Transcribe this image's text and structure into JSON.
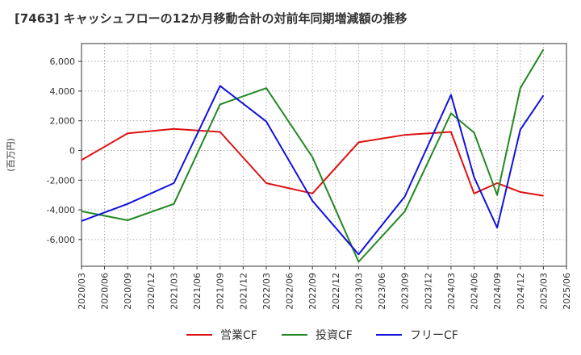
{
  "title": "[7463]  キャッシュフローの12か月移動合計の対前年同期増減額の推移",
  "chart_data": {
    "type": "line",
    "title": "[7463]  キャッシュフローの12か月移動合計の対前年同期増減額の推移",
    "ylabel": "(百万円)",
    "xlabel": "",
    "ylim": [
      -7800,
      7200
    ],
    "yticks": [
      -6000,
      -4000,
      -2000,
      0,
      2000,
      4000,
      6000
    ],
    "ytick_labels": [
      "-6,000",
      "-4,000",
      "-2,000",
      "0",
      "2,000",
      "4,000",
      "6,000"
    ],
    "categories": [
      "2020/03",
      "2020/06",
      "2020/09",
      "2020/12",
      "2021/03",
      "2021/06",
      "2021/09",
      "2021/12",
      "2022/03",
      "2022/06",
      "2022/09",
      "2022/12",
      "2023/03",
      "2023/06",
      "2023/09",
      "2023/12",
      "2024/03",
      "2024/06",
      "2024/09",
      "2024/12",
      "2025/03",
      "2025/06"
    ],
    "grid": true,
    "legend_position": "bottom",
    "series": [
      {
        "name": "営業CF",
        "color": "#dd1111",
        "points": [
          {
            "x": "2020/03",
            "y": -650
          },
          {
            "x": "2020/09",
            "y": 1150
          },
          {
            "x": "2021/03",
            "y": 1450
          },
          {
            "x": "2021/09",
            "y": 1250
          },
          {
            "x": "2022/03",
            "y": -2200
          },
          {
            "x": "2022/09",
            "y": -2900
          },
          {
            "x": "2023/03",
            "y": 550
          },
          {
            "x": "2023/09",
            "y": 1050
          },
          {
            "x": "2024/03",
            "y": 1250
          },
          {
            "x": "2024/06",
            "y": -2900
          },
          {
            "x": "2024/09",
            "y": -2200
          },
          {
            "x": "2024/12",
            "y": -2800
          },
          {
            "x": "2025/03",
            "y": -3050
          }
        ]
      },
      {
        "name": "投資CF",
        "color": "#228822",
        "points": [
          {
            "x": "2020/03",
            "y": -4100
          },
          {
            "x": "2020/09",
            "y": -4700
          },
          {
            "x": "2021/03",
            "y": -3600
          },
          {
            "x": "2021/09",
            "y": 3100
          },
          {
            "x": "2022/03",
            "y": 4200
          },
          {
            "x": "2022/09",
            "y": -450
          },
          {
            "x": "2023/03",
            "y": -7500
          },
          {
            "x": "2023/09",
            "y": -4100
          },
          {
            "x": "2024/03",
            "y": 2500
          },
          {
            "x": "2024/06",
            "y": 1200
          },
          {
            "x": "2024/09",
            "y": -3000
          },
          {
            "x": "2024/12",
            "y": 4200
          },
          {
            "x": "2025/03",
            "y": 6800
          }
        ]
      },
      {
        "name": "フリーCF",
        "color": "#1111dd",
        "points": [
          {
            "x": "2020/03",
            "y": -4750
          },
          {
            "x": "2020/09",
            "y": -3600
          },
          {
            "x": "2021/03",
            "y": -2200
          },
          {
            "x": "2021/09",
            "y": 4350
          },
          {
            "x": "2022/03",
            "y": 1950
          },
          {
            "x": "2022/09",
            "y": -3400
          },
          {
            "x": "2023/03",
            "y": -7000
          },
          {
            "x": "2023/09",
            "y": -3100
          },
          {
            "x": "2024/03",
            "y": 3750
          },
          {
            "x": "2024/06",
            "y": -1800
          },
          {
            "x": "2024/09",
            "y": -5200
          },
          {
            "x": "2024/12",
            "y": 1400
          },
          {
            "x": "2025/03",
            "y": 3700
          }
        ]
      }
    ]
  }
}
